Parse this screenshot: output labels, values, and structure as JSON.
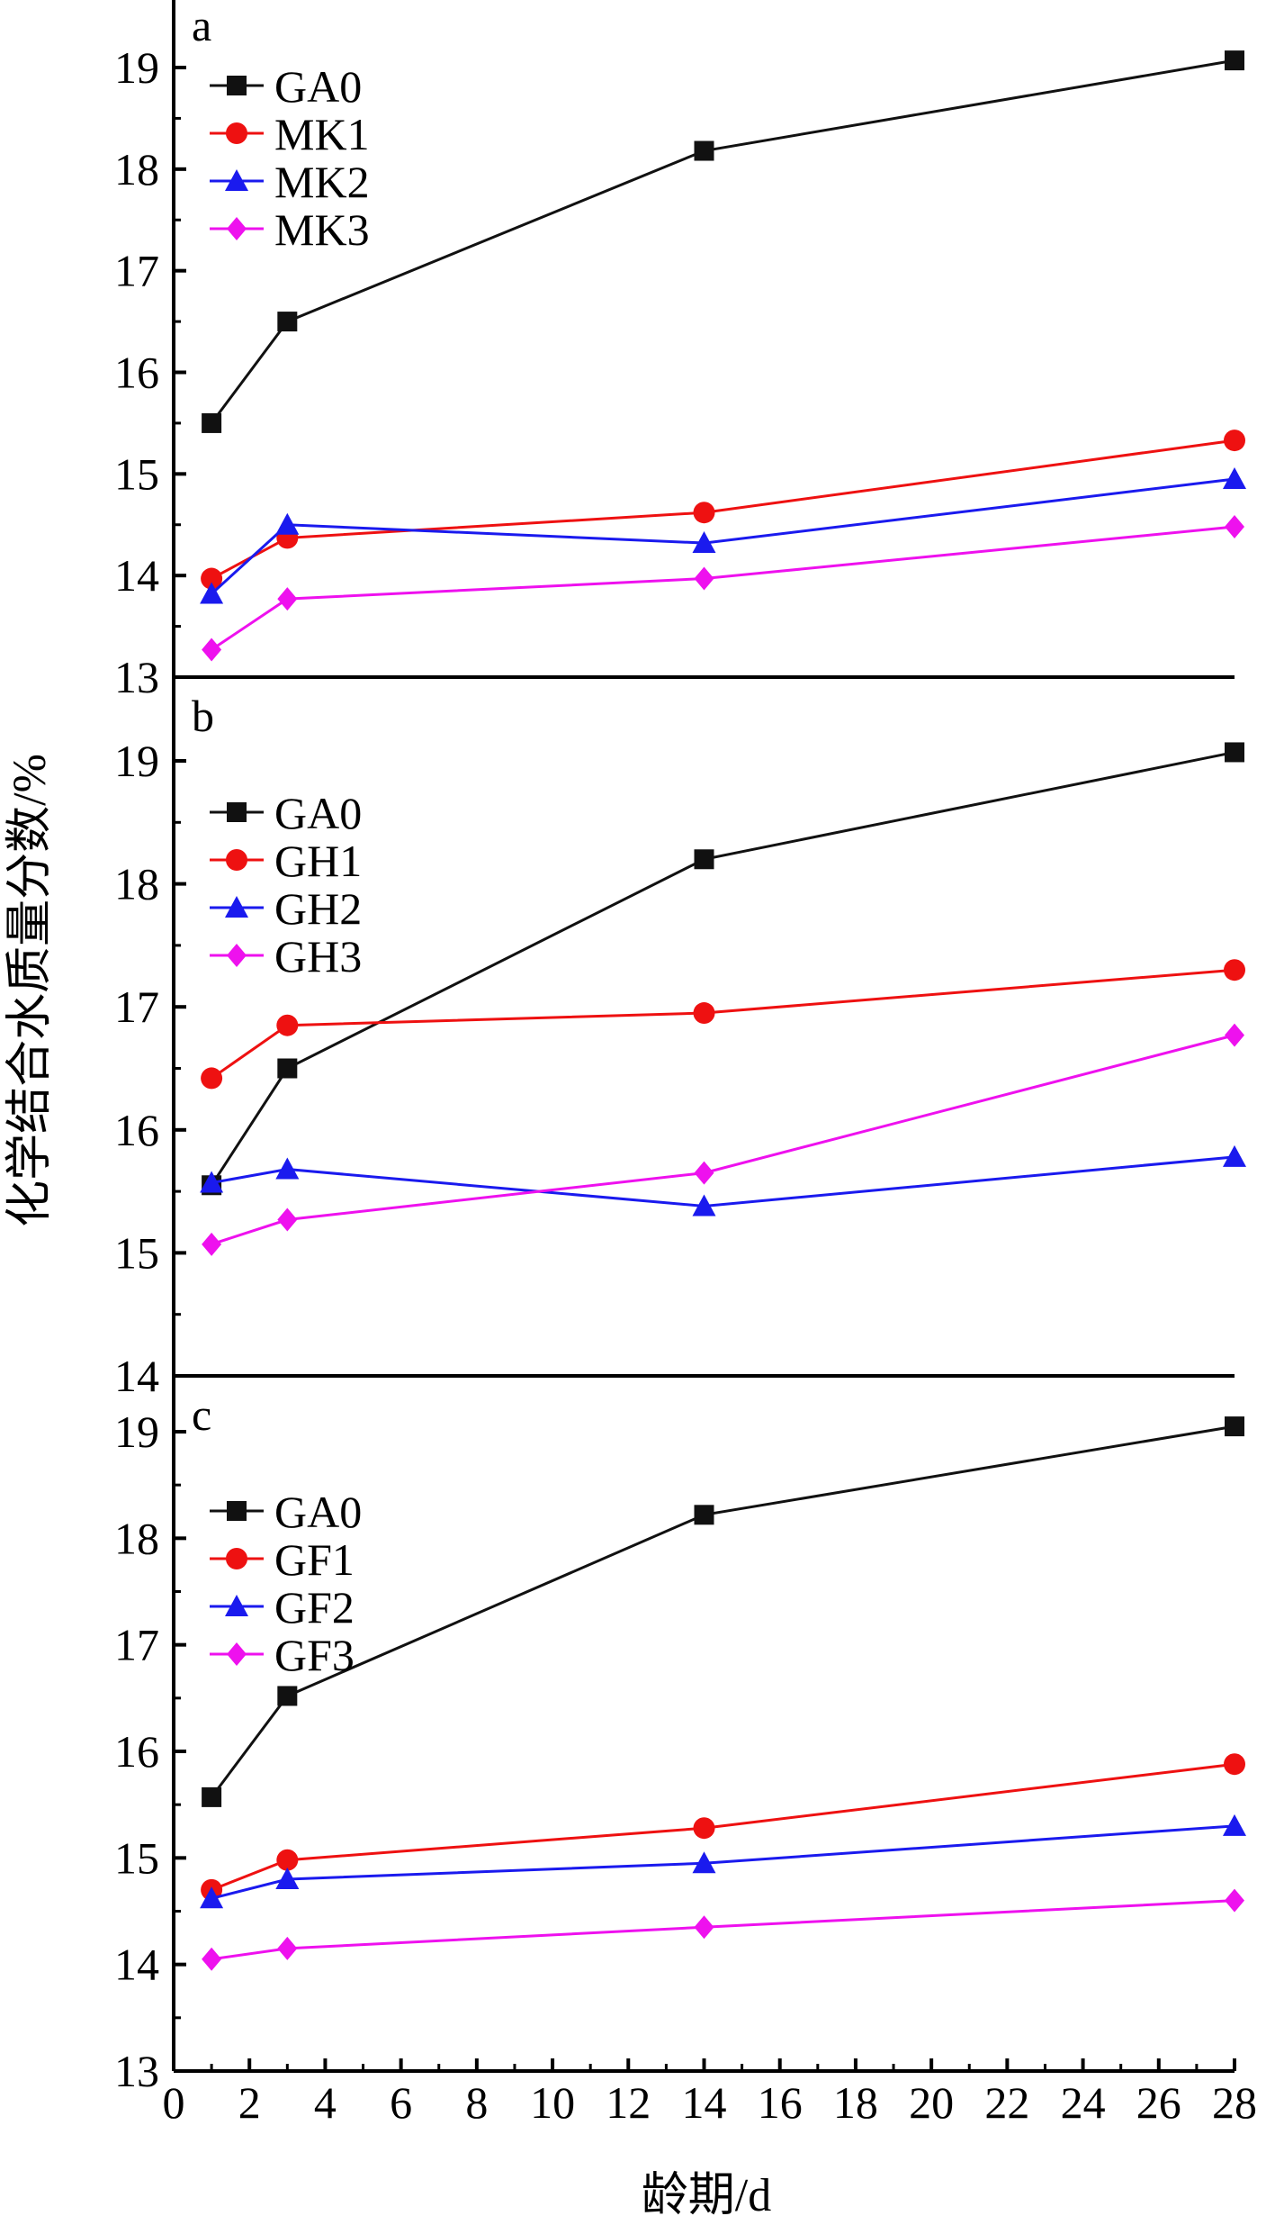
{
  "chart_data": {
    "type": "line",
    "xlabel": "龄期/d",
    "ylabel": "化学结合水质量分数/%",
    "x_ticks": [
      "0",
      "2",
      "4",
      "6",
      "8",
      "10",
      "12",
      "14",
      "16",
      "18",
      "20",
      "22",
      "24",
      "26",
      "28"
    ],
    "xlim": [
      0,
      28
    ],
    "grid": false,
    "panels": [
      {
        "label": "a",
        "ylim": [
          13,
          19.4
        ],
        "y_ticks": [
          "13",
          "14",
          "15",
          "16",
          "17",
          "18",
          "19"
        ],
        "legend_position": "top-left",
        "x": [
          1,
          3,
          14,
          28
        ],
        "series": [
          {
            "name": "GA0",
            "values": [
              15.5,
              16.5,
              18.18,
              19.07
            ],
            "color": "#111111",
            "marker": "square"
          },
          {
            "name": "MK1",
            "values": [
              13.97,
              14.37,
              14.62,
              15.33
            ],
            "color": "#ee1111",
            "marker": "circle"
          },
          {
            "name": "MK2",
            "values": [
              13.82,
              14.5,
              14.32,
              14.95
            ],
            "color": "#1a1aee",
            "marker": "triangle"
          },
          {
            "name": "MK3",
            "values": [
              13.27,
              13.77,
              13.97,
              14.48
            ],
            "color": "#ee11ee",
            "marker": "diamond"
          }
        ]
      },
      {
        "label": "b",
        "ylim": [
          14,
          19.5
        ],
        "y_ticks": [
          "14",
          "15",
          "16",
          "17",
          "18",
          "19"
        ],
        "legend_position": "top-left",
        "x": [
          1,
          3,
          14,
          28
        ],
        "series": [
          {
            "name": "GA0",
            "values": [
              15.55,
              16.5,
              18.2,
              19.07
            ],
            "color": "#111111",
            "marker": "square"
          },
          {
            "name": "GH1",
            "values": [
              16.42,
              16.85,
              16.95,
              17.3
            ],
            "color": "#ee1111",
            "marker": "circle"
          },
          {
            "name": "GH2",
            "values": [
              15.57,
              15.68,
              15.38,
              15.78
            ],
            "color": "#1a1aee",
            "marker": "triangle"
          },
          {
            "name": "GH3",
            "values": [
              15.07,
              15.27,
              15.65,
              16.77
            ],
            "color": "#ee11ee",
            "marker": "diamond"
          }
        ]
      },
      {
        "label": "c",
        "ylim": [
          13,
          19.5
        ],
        "y_ticks": [
          "13",
          "14",
          "15",
          "16",
          "17",
          "18",
          "19"
        ],
        "legend_position": "top-left",
        "x": [
          1,
          3,
          14,
          28
        ],
        "series": [
          {
            "name": "GA0",
            "values": [
              15.57,
              16.52,
              18.22,
              19.05
            ],
            "color": "#111111",
            "marker": "square"
          },
          {
            "name": "GF1",
            "values": [
              14.7,
              14.98,
              15.28,
              15.88
            ],
            "color": "#ee1111",
            "marker": "circle"
          },
          {
            "name": "GF2",
            "values": [
              14.62,
              14.8,
              14.95,
              15.3
            ],
            "color": "#1a1aee",
            "marker": "triangle"
          },
          {
            "name": "GF3",
            "values": [
              14.05,
              14.15,
              14.35,
              14.6
            ],
            "color": "#ee11ee",
            "marker": "diamond"
          }
        ]
      }
    ]
  }
}
